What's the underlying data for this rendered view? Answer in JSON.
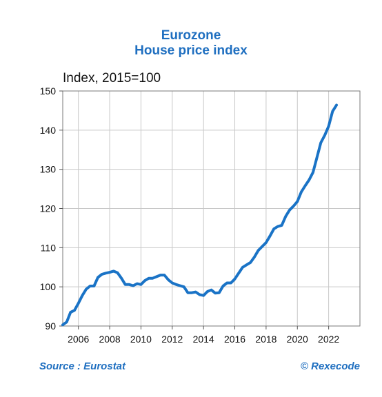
{
  "chart_data": {
    "type": "line",
    "title": "Eurozone",
    "subtitle": "House price index",
    "ylabel": "Index, 2015=100",
    "xlabel": "",
    "ylim": [
      90,
      150
    ],
    "xlim": [
      2005.0,
      2024.0
    ],
    "y_ticks": [
      "90",
      "100",
      "110",
      "120",
      "130",
      "140",
      "150"
    ],
    "x_ticks": [
      "2006",
      "2008",
      "2010",
      "2012",
      "2014",
      "2016",
      "2018",
      "2020",
      "2022"
    ],
    "grid": true,
    "series": [
      {
        "color": "#1a73c6",
        "x": [
          2005.0,
          2005.25,
          2005.5,
          2005.75,
          2006.0,
          2006.25,
          2006.5,
          2006.75,
          2007.0,
          2007.25,
          2007.5,
          2007.75,
          2008.0,
          2008.25,
          2008.5,
          2008.75,
          2009.0,
          2009.25,
          2009.5,
          2009.75,
          2010.0,
          2010.25,
          2010.5,
          2010.75,
          2011.0,
          2011.25,
          2011.5,
          2011.75,
          2012.0,
          2012.25,
          2012.5,
          2012.75,
          2013.0,
          2013.25,
          2013.5,
          2013.75,
          2014.0,
          2014.25,
          2014.5,
          2014.75,
          2015.0,
          2015.25,
          2015.5,
          2015.75,
          2016.0,
          2016.25,
          2016.5,
          2016.75,
          2017.0,
          2017.25,
          2017.5,
          2017.75,
          2018.0,
          2018.25,
          2018.5,
          2018.75,
          2019.0,
          2019.25,
          2019.5,
          2019.75,
          2020.0,
          2020.25,
          2020.5,
          2020.75,
          2021.0,
          2021.25,
          2021.5,
          2021.75,
          2022.0,
          2022.25,
          2022.5
        ],
        "values": [
          90.3,
          91.0,
          93.5,
          94.0,
          95.8,
          97.8,
          99.4,
          100.2,
          100.2,
          102.4,
          103.2,
          103.5,
          103.7,
          104.0,
          103.6,
          102.2,
          100.6,
          100.6,
          100.3,
          100.8,
          100.6,
          101.6,
          102.2,
          102.2,
          102.6,
          103.0,
          103.0,
          101.8,
          101.0,
          100.6,
          100.3,
          100.0,
          98.5,
          98.5,
          98.7,
          98.0,
          97.8,
          98.8,
          99.2,
          98.4,
          98.5,
          100.2,
          101.0,
          101.0,
          102.0,
          103.5,
          105.0,
          105.6,
          106.2,
          107.6,
          109.3,
          110.3,
          111.3,
          113.0,
          114.8,
          115.4,
          115.7,
          118.0,
          119.6,
          120.6,
          121.8,
          124.2,
          125.8,
          127.3,
          129.2,
          133.0,
          136.8,
          138.7,
          141.0,
          144.8,
          146.4
        ]
      }
    ]
  },
  "footer": {
    "source": "Source : Eurostat",
    "copyright": "© Rexecode"
  }
}
